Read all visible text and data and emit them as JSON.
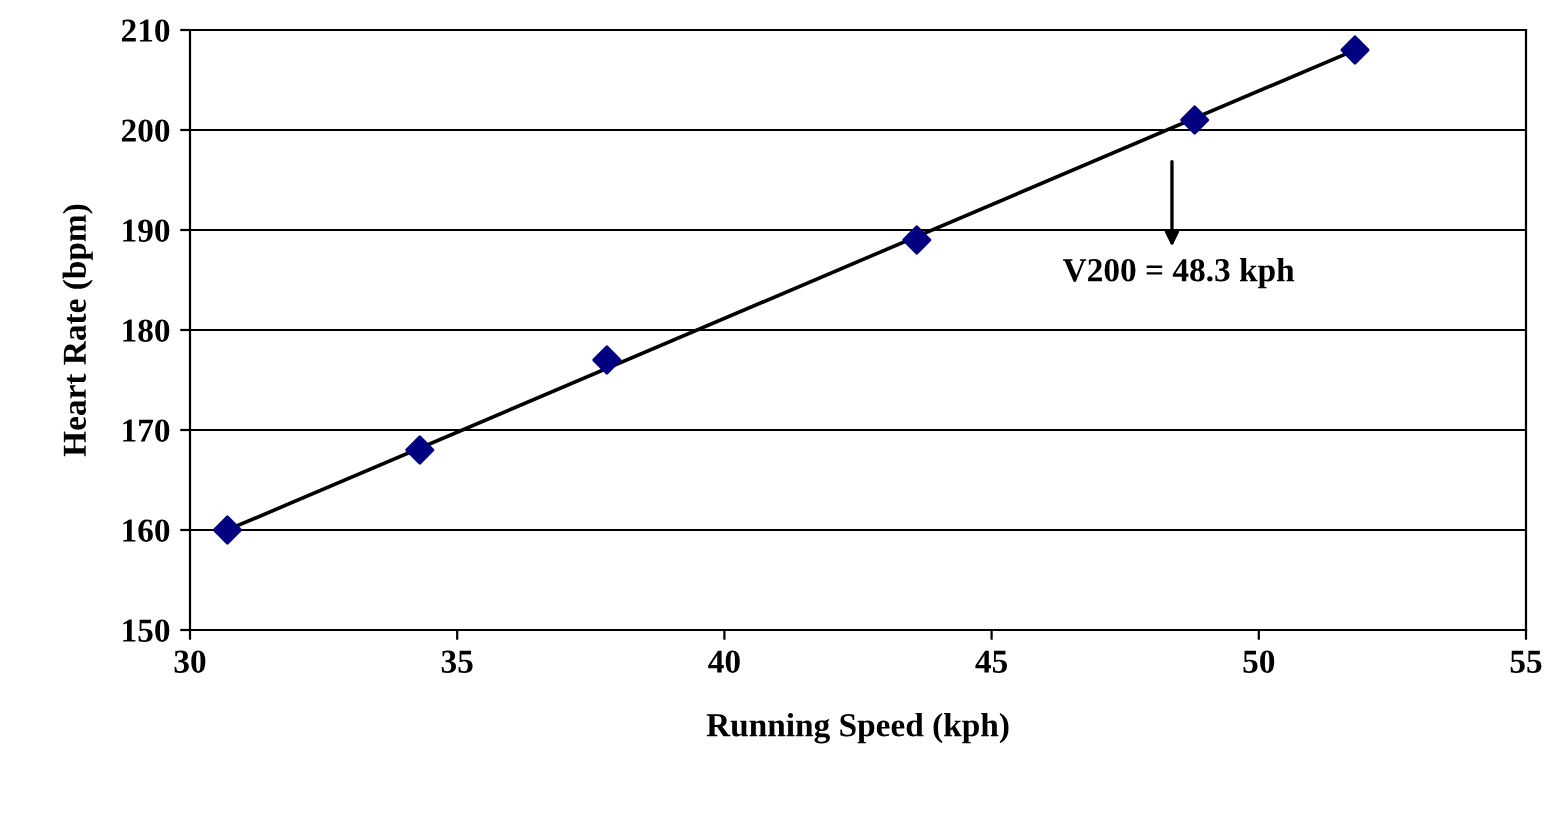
{
  "chart_data": {
    "type": "scatter",
    "xlabel": "Running Speed (kph)",
    "ylabel": "Heart Rate (bpm)",
    "x": [
      30.7,
      34.3,
      37.8,
      43.6,
      48.8,
      51.8
    ],
    "series": [
      {
        "color": "#000080",
        "values": [
          160,
          168,
          177,
          189,
          201,
          208
        ],
        "marker": "diamond"
      },
      {
        "type": "line",
        "color": "#000000",
        "x": [
          30.7,
          51.8
        ],
        "values": [
          160,
          208
        ],
        "marker": "none"
      }
    ],
    "annotations": [
      "V200 = 48.3 kph"
    ],
    "xlim": [
      30,
      55
    ],
    "xticks": [
      30,
      35,
      40,
      45,
      50,
      55
    ],
    "ylim": [
      150,
      210
    ],
    "yticks": [
      150,
      160,
      170,
      180,
      190,
      200,
      210
    ],
    "grid": "y",
    "legend": false
  }
}
